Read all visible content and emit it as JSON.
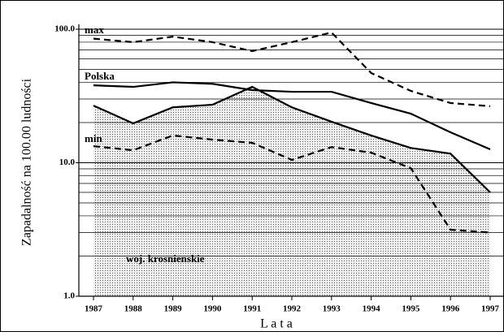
{
  "chart_data": {
    "type": "line",
    "y_label": "Zapadalność na 100.00 ludności",
    "x_label": "L a t a",
    "categories": [
      "1987",
      "1988",
      "1989",
      "1990",
      "1991",
      "1992",
      "1993",
      "1994",
      "1995",
      "1996",
      "1997"
    ],
    "log_y": true,
    "grid": true,
    "ylim": [
      1,
      100
    ],
    "yticks": [
      {
        "value": 1,
        "label": "1.0"
      },
      {
        "value": 10,
        "label": "10.0"
      },
      {
        "value": 100,
        "label": "100.0"
      }
    ],
    "minor_yticks": [
      2,
      3,
      4,
      5,
      6,
      7,
      8,
      9,
      20,
      30,
      40,
      50,
      60,
      70,
      80,
      90
    ],
    "series": [
      {
        "name": "woj. krosnienskie",
        "color": "#000000",
        "style": "area",
        "values": [
          26.8,
          19.7,
          26,
          27.2,
          37,
          26,
          20.3,
          16,
          12.9,
          11.7,
          6.0
        ]
      },
      {
        "name": "max",
        "color": "#000000",
        "style": "dashed",
        "values": [
          85,
          80,
          88,
          80,
          68.5,
          80,
          94.5,
          47,
          34.5,
          28,
          26.5
        ]
      },
      {
        "name": "Polska",
        "color": "#000000",
        "style": "solid",
        "values": [
          38,
          37,
          40,
          39,
          35,
          34,
          34,
          28,
          23.3,
          16.9,
          12.6
        ]
      },
      {
        "name": "min",
        "color": "#000000",
        "style": "dashed",
        "values": [
          13.3,
          12.4,
          16,
          14.9,
          14.1,
          10.5,
          13.1,
          11.9,
          9.1,
          3.15,
          3.0
        ]
      }
    ]
  }
}
